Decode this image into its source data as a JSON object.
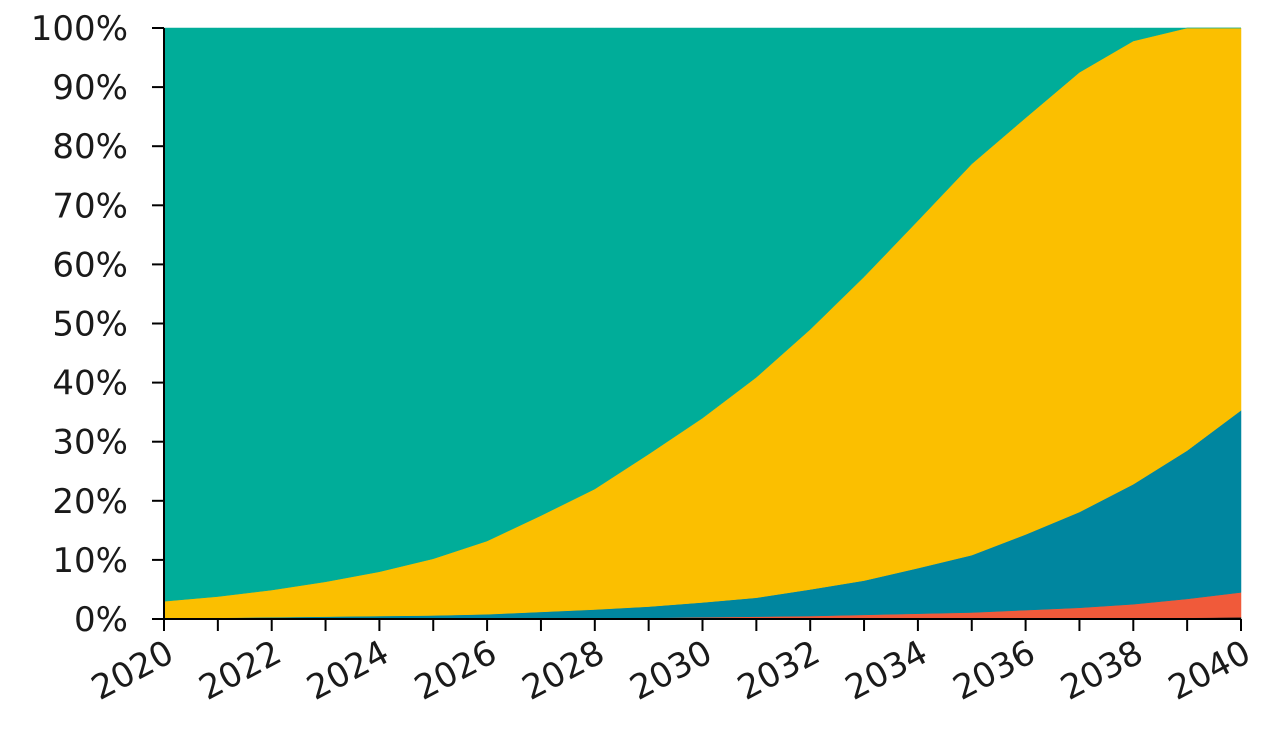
{
  "chart_data": {
    "type": "area",
    "stacking": "percent",
    "title": "",
    "xlabel": "",
    "ylabel": "",
    "x": [
      2020,
      2021,
      2022,
      2023,
      2024,
      2025,
      2026,
      2027,
      2028,
      2029,
      2030,
      2031,
      2032,
      2033,
      2034,
      2035,
      2036,
      2037,
      2038,
      2039,
      2040
    ],
    "x_tick_labels": [
      "2020",
      "2022",
      "2024",
      "2026",
      "2028",
      "2030",
      "2032",
      "2034",
      "2036",
      "2038",
      "2040"
    ],
    "ylim": [
      0,
      100
    ],
    "y_tick_labels": [
      "0%",
      "10%",
      "20%",
      "30%",
      "40%",
      "50%",
      "60%",
      "70%",
      "80%",
      "90%",
      "100%"
    ],
    "grid": false,
    "legend": "none",
    "series": [
      {
        "color": "#1f1f1f",
        "values": [
          0,
          0,
          0,
          0,
          0,
          0,
          0,
          0,
          0,
          0,
          0,
          0,
          0,
          0,
          0,
          0,
          0,
          0,
          0,
          0.2,
          0.3
        ]
      },
      {
        "color": "#f05a3a",
        "values": [
          0,
          0,
          0,
          0,
          0,
          0,
          0,
          0.1,
          0.1,
          0.2,
          0.3,
          0.4,
          0.5,
          0.7,
          0.9,
          1.1,
          1.5,
          1.9,
          2.5,
          3.2,
          4.2
        ]
      },
      {
        "color": "#00869f",
        "values": [
          0.1,
          0.2,
          0.3,
          0.4,
          0.5,
          0.6,
          0.8,
          1.1,
          1.5,
          1.9,
          2.5,
          3.2,
          4.5,
          5.8,
          7.7,
          9.7,
          12.8,
          16.2,
          20.3,
          25.1,
          30.8
        ]
      },
      {
        "color": "#fbbf00",
        "values": [
          2.9,
          3.6,
          4.6,
          5.9,
          7.5,
          9.6,
          12.4,
          16.3,
          20.4,
          25.8,
          31.2,
          37.3,
          44.0,
          51.4,
          58.8,
          66.2,
          70.5,
          74.4,
          75.0,
          71.5,
          64.7
        ]
      },
      {
        "color": "#00ad99",
        "values": [
          97.0,
          96.2,
          95.1,
          93.7,
          92.0,
          89.8,
          86.8,
          82.5,
          78.0,
          72.1,
          66.0,
          59.1,
          51.0,
          42.1,
          32.6,
          23.0,
          15.2,
          7.5,
          2.2,
          0,
          0
        ]
      }
    ]
  }
}
